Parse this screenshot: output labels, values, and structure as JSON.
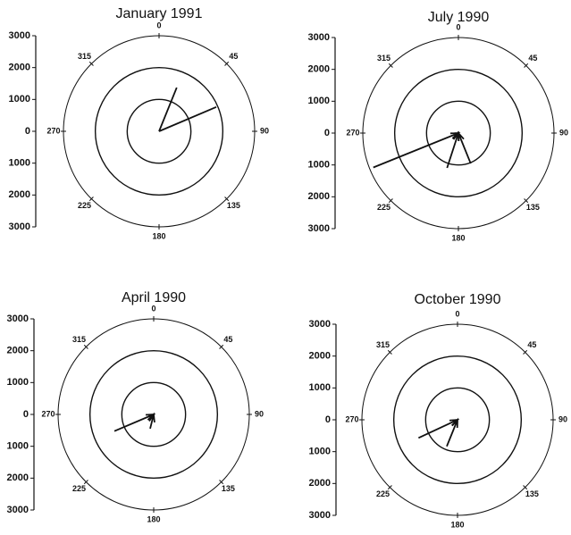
{
  "chart_data": [
    {
      "type": "polar-vector",
      "title": "January 1991",
      "arrowheads": false,
      "ylim": [
        -3000,
        3000
      ],
      "yticks": [
        3000,
        2000,
        1000,
        0,
        {
          "value": -1000,
          "label": "1000"
        },
        {
          "value": -2000,
          "label": "2000"
        },
        {
          "value": -3000,
          "label": "3000"
        }
      ],
      "rticks": [
        1000,
        2000,
        3000
      ],
      "angles": [
        0,
        45,
        90,
        135,
        180,
        225,
        270,
        315
      ],
      "vectors": [
        {
          "direction": 22,
          "magnitude": 1480
        },
        {
          "direction": 67,
          "magnitude": 1950
        }
      ]
    },
    {
      "type": "polar-vector",
      "title": "July 1990",
      "arrowheads": true,
      "ylim": [
        -3000,
        3000
      ],
      "yticks": [
        3000,
        2000,
        1000,
        0,
        {
          "value": -1000,
          "label": "1000"
        },
        {
          "value": -2000,
          "label": "2000"
        },
        {
          "value": -3000,
          "label": "3000"
        }
      ],
      "rticks": [
        1000,
        2000,
        3000
      ],
      "angles": [
        0,
        45,
        90,
        135,
        180,
        225,
        270,
        315
      ],
      "vectors": [
        {
          "direction": 248,
          "magnitude": 2880
        },
        {
          "direction": 198,
          "magnitude": 1150
        },
        {
          "direction": 158,
          "magnitude": 1030
        }
      ]
    },
    {
      "type": "polar-vector",
      "title": "April 1990",
      "arrowheads": true,
      "ylim": [
        -3000,
        3000
      ],
      "yticks": [
        3000,
        2000,
        1000,
        0,
        {
          "value": -1000,
          "label": "1000"
        },
        {
          "value": -2000,
          "label": "2000"
        },
        {
          "value": -3000,
          "label": "3000"
        }
      ],
      "rticks": [
        1000,
        2000,
        3000
      ],
      "angles": [
        0,
        45,
        90,
        135,
        180,
        225,
        270,
        315
      ],
      "vectors": [
        {
          "direction": 247,
          "magnitude": 1340
        },
        {
          "direction": 194,
          "magnitude": 460
        }
      ]
    },
    {
      "type": "polar-vector",
      "title": "October 1990",
      "arrowheads": true,
      "ylim": [
        -3000,
        3000
      ],
      "yticks": [
        3000,
        2000,
        1000,
        0,
        {
          "value": -1000,
          "label": "1000"
        },
        {
          "value": -2000,
          "label": "2000"
        },
        {
          "value": -3000,
          "label": "3000"
        }
      ],
      "rticks": [
        1000,
        2000,
        3000
      ],
      "angles": [
        0,
        45,
        90,
        135,
        180,
        225,
        270,
        315
      ],
      "vectors": [
        {
          "direction": 245,
          "magnitude": 1350
        },
        {
          "direction": 202,
          "magnitude": 900
        }
      ]
    }
  ]
}
